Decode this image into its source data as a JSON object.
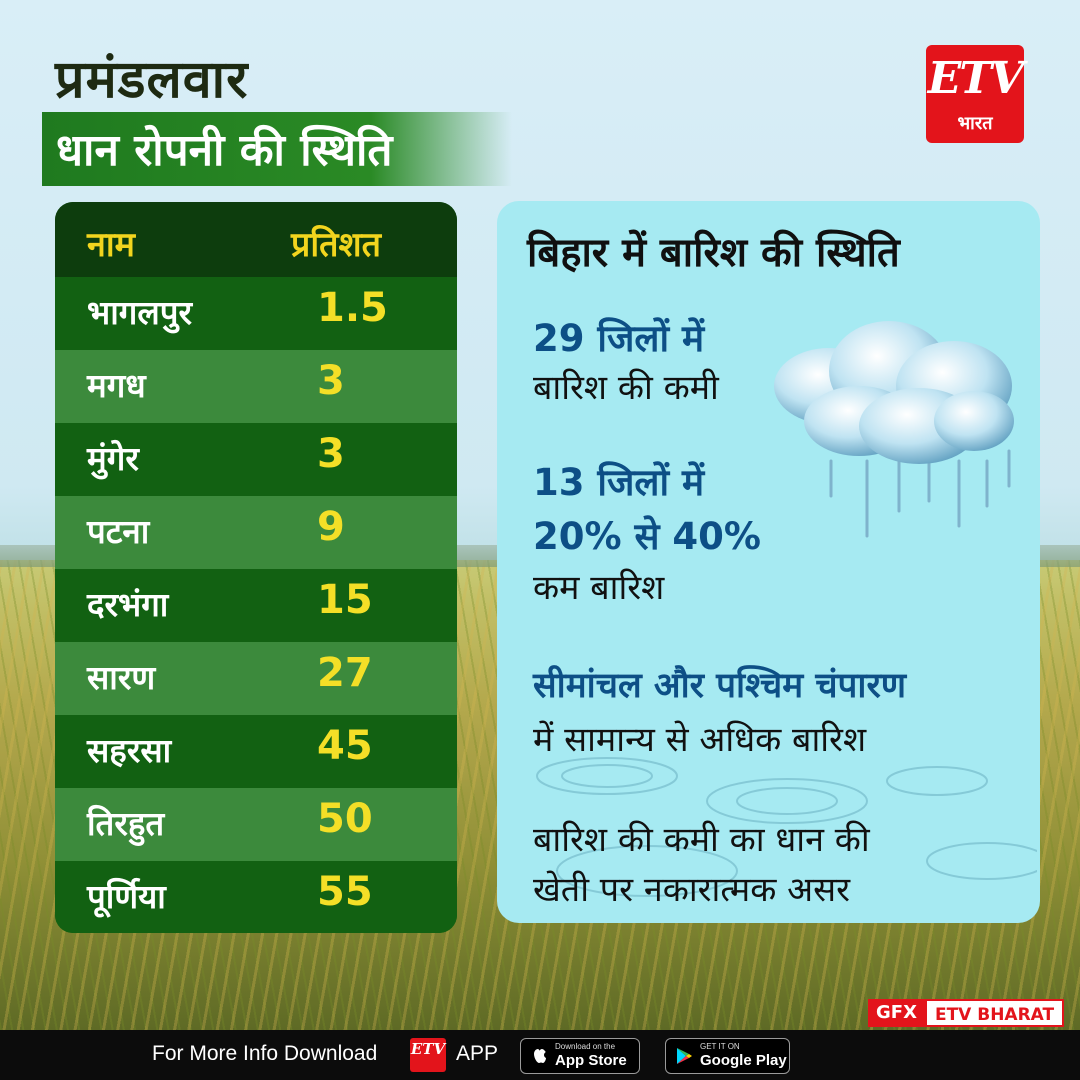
{
  "header": {
    "title_line1": "प्रमंडलवार",
    "title_line2": "धान रोपनी की स्थिति"
  },
  "logo": {
    "brand": "ETV",
    "sub": "भारत",
    "color": "#e3141b"
  },
  "table": {
    "headers": [
      "नाम",
      "प्रतिशत"
    ],
    "rows": [
      {
        "name": "भागलपुर",
        "value": "1.5"
      },
      {
        "name": "मगध",
        "value": "3"
      },
      {
        "name": "मुंगेर",
        "value": "3"
      },
      {
        "name": "पटना",
        "value": "9"
      },
      {
        "name": "दरभंगा",
        "value": "15"
      },
      {
        "name": "सारण",
        "value": "27"
      },
      {
        "name": "सहरसा",
        "value": "45"
      },
      {
        "name": "तिरहुत",
        "value": "50"
      },
      {
        "name": "पूर्णिया",
        "value": "55"
      }
    ],
    "header_color": "#f2d51e",
    "value_color": "#f4df27"
  },
  "rain_card": {
    "title": "बिहार में बारिश की स्थिति",
    "item1": {
      "highlight": "29 जिलों में",
      "text": "बारिश की कमी"
    },
    "item2": {
      "highlight_line1": "13 जिलों में",
      "highlight_line2": "20% से 40%",
      "text": "कम बारिश"
    },
    "item3": {
      "highlight": "सीमांचल और पश्चिम चंपारण",
      "text": "में सामान्य से अधिक बारिश"
    },
    "item4": {
      "line1": "बारिश की कमी का धान की",
      "line2": "खेती पर नकारात्मक असर"
    },
    "icon": "rain-cloud-icon",
    "highlight_color": "#0d4f86"
  },
  "credit": {
    "gfx": "GFX",
    "brand": "ETV BHARAT"
  },
  "footer": {
    "text": "For More Info Download",
    "logo_text": "ETV",
    "app": "APP",
    "appstore_small": "Download on the",
    "appstore_big": "App Store",
    "googleplay_small": "GET IT ON",
    "googleplay_big": "Google Play"
  }
}
